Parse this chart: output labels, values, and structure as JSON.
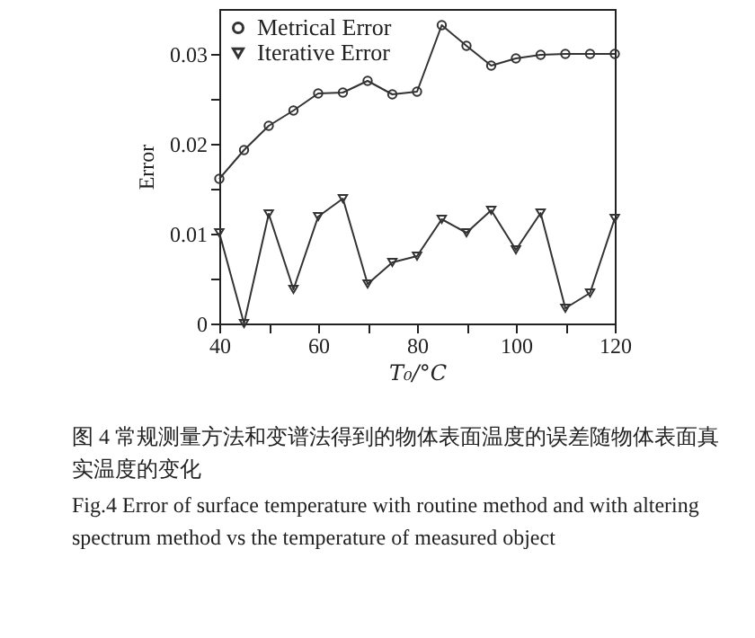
{
  "chart_data": {
    "type": "line",
    "xlabel": "T₀/°C",
    "ylabel": "Error",
    "x": [
      40,
      45,
      50,
      55,
      60,
      65,
      70,
      75,
      80,
      85,
      90,
      95,
      100,
      105,
      110,
      115,
      120
    ],
    "series": [
      {
        "name": "Metrical Error",
        "color": "#333333",
        "marker": "circle",
        "values": [
          0.0161,
          0.0193,
          0.022,
          0.0237,
          0.0256,
          0.0257,
          0.027,
          0.0255,
          0.0258,
          0.0332,
          0.0309,
          0.0287,
          0.0295,
          0.0299,
          0.03,
          0.03,
          0.03
        ]
      },
      {
        "name": "Iterative Error",
        "color": "#333333",
        "marker": "triangle",
        "values": [
          0.0101,
          0,
          0.0122,
          0.0038,
          0.0119,
          0.0139,
          0.0044,
          0.0068,
          0.0075,
          0.0116,
          0.0101,
          0.0126,
          0.0082,
          0.0123,
          0.0017,
          0.0034,
          0.0117
        ]
      }
    ],
    "xlim": [
      40,
      120
    ],
    "xticks": [
      40,
      {
        "value": 50,
        "label": null
      },
      60,
      {
        "value": 70,
        "label": null
      },
      80,
      {
        "value": 90,
        "label": null
      },
      100,
      {
        "value": 110,
        "label": null
      },
      120
    ],
    "ylim": [
      0,
      0.035
    ],
    "yticks": [
      0,
      {
        "value": 0.005,
        "label": null
      },
      0.01,
      {
        "value": 0.015,
        "label": null
      },
      0.02,
      {
        "value": 0.025,
        "label": null
      },
      0.03
    ],
    "grid": false,
    "legend": "top left",
    "annotations": [
      "图 4 常规测量方法和变谱法得到的物体表面温度的误差随物体表面真实温度的变化",
      "Fig.4 Error of surface temperature with routine method and with altering spectrum method vs the temperature of measured object"
    ]
  }
}
